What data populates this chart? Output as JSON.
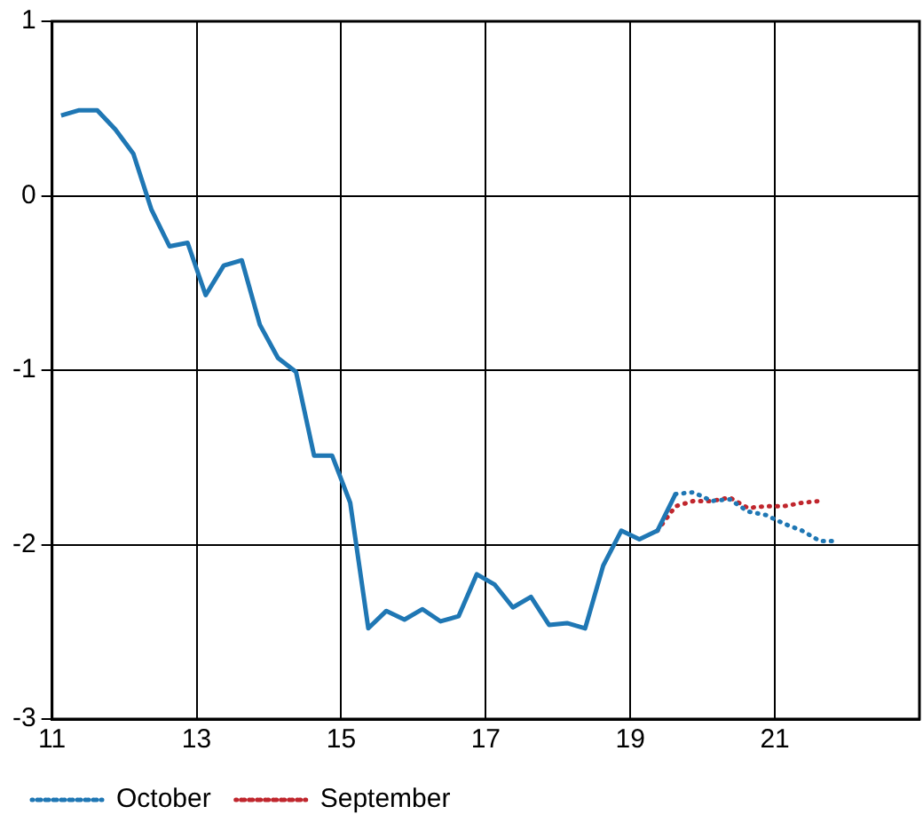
{
  "chart_data": {
    "type": "line",
    "xlim": [
      11,
      23
    ],
    "xticks": [
      11,
      13,
      15,
      17,
      19,
      21
    ],
    "ylim": [
      -3,
      1
    ],
    "yticks": [
      -3,
      -2,
      -1,
      0,
      1
    ],
    "grid": true,
    "legend": "bottom left",
    "series": [
      {
        "color": "#1f77b4",
        "line_style": "solid",
        "x": [
          11.125,
          11.375,
          11.625,
          11.875,
          12.125,
          12.375,
          12.625,
          12.875,
          13.125,
          13.375,
          13.625,
          13.875,
          14.125,
          14.375,
          14.625,
          14.875,
          15.125,
          15.375,
          15.625,
          15.875,
          16.125,
          16.375,
          16.625,
          16.875,
          17.125,
          17.375,
          17.625,
          17.875,
          18.125,
          18.375,
          18.625,
          18.875,
          19.125,
          19.375,
          19.625
        ],
        "values": [
          0.46,
          0.49,
          0.49,
          0.38,
          0.24,
          -0.08,
          -0.29,
          -0.27,
          -0.57,
          -0.4,
          -0.37,
          -0.74,
          -0.93,
          -1.01,
          -1.49,
          -1.49,
          -1.76,
          -2.48,
          -2.38,
          -2.43,
          -2.37,
          -2.44,
          -2.41,
          -2.17,
          -2.23,
          -2.36,
          -2.3,
          -2.46,
          -2.45,
          -2.48,
          -2.12,
          -1.92,
          -1.97,
          -1.92,
          -1.71
        ]
      },
      {
        "name": "October",
        "color": "#1f77b4",
        "line_style": "dotted",
        "x": [
          19.625,
          19.875,
          20.125,
          20.375,
          20.625,
          20.875,
          21.125,
          21.375,
          21.625,
          21.875
        ],
        "values": [
          -1.71,
          -1.7,
          -1.75,
          -1.74,
          -1.81,
          -1.83,
          -1.88,
          -1.92,
          -1.98,
          -1.98
        ]
      },
      {
        "name": "September",
        "color": "#c0262d",
        "line_style": "dotted",
        "x": [
          19.375,
          19.625,
          19.875,
          20.125,
          20.375,
          20.625,
          20.875,
          21.125,
          21.375,
          21.625
        ],
        "values": [
          -1.92,
          -1.78,
          -1.75,
          -1.75,
          -1.73,
          -1.79,
          -1.78,
          -1.78,
          -1.76,
          -1.75
        ]
      }
    ]
  }
}
